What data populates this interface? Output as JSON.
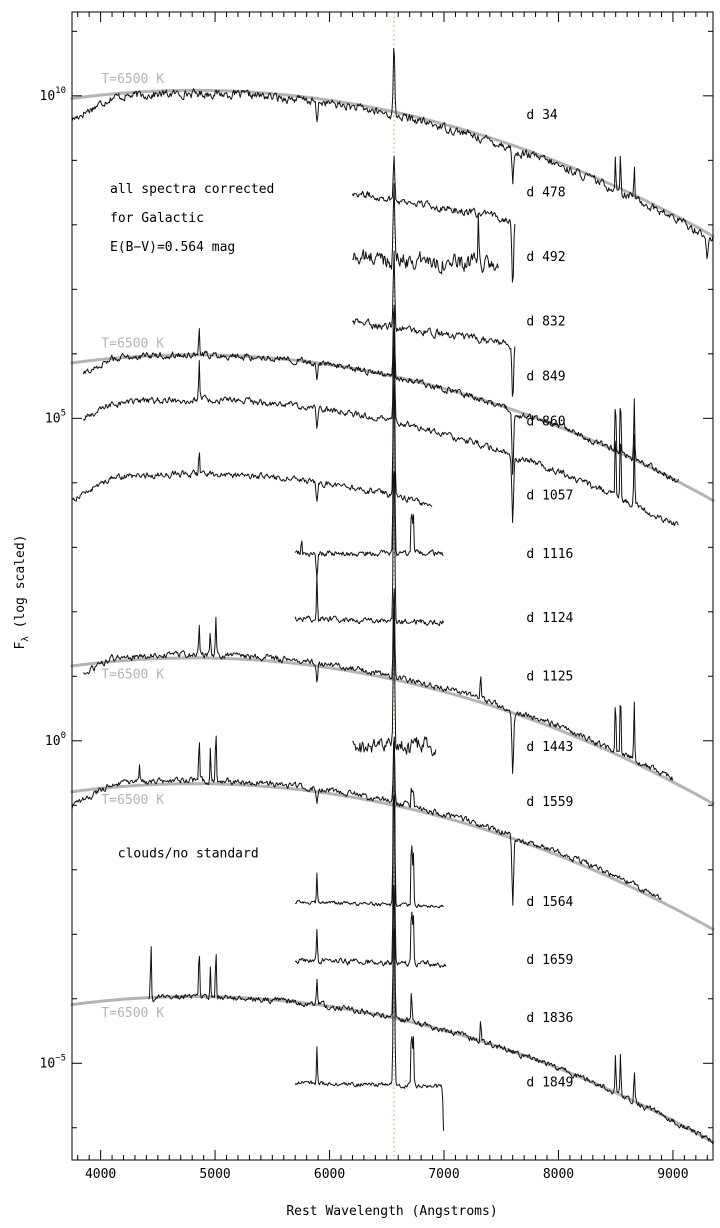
{
  "chart_data": {
    "type": "line",
    "title": "",
    "xlabel": "Rest Wavelength (Angstroms)",
    "ylabel_prefix": "F",
    "ylabel_sub": "λ",
    "ylabel_suffix": " (log scaled)",
    "xlim": [
      3750,
      9350
    ],
    "x_ticks": [
      4000,
      5000,
      6000,
      7000,
      8000,
      9000
    ],
    "x_tick_labels": [
      "4000",
      "5000",
      "6000",
      "7000",
      "8000",
      "9000"
    ],
    "ylog_lim": [
      -6.5,
      11.3
    ],
    "y_ticks": [
      {
        "log": 10,
        "base": "10",
        "exp": "10"
      },
      {
        "log": 5,
        "base": "10",
        "exp": "5"
      },
      {
        "log": 0,
        "base": "10",
        "exp": "0"
      },
      {
        "log": -5,
        "base": "10",
        "exp": "−5"
      }
    ],
    "halpha_marker": 6563,
    "note_lines": [
      "all spectra corrected",
      "for Galactic",
      "E(B−V)=0.564 mag"
    ],
    "spectra": [
      {
        "label": "d 34",
        "range": [
          3750,
          9350
        ],
        "level": 9.7,
        "shape": "full",
        "noise": 0.22,
        "em": [
          [
            6563,
            1.1
          ],
          [
            8498,
            0.55
          ],
          [
            8542,
            0.6
          ],
          [
            8662,
            0.55
          ]
        ],
        "ab": [
          [
            5890,
            0.35
          ],
          [
            7600,
            0.4
          ],
          [
            9300,
            0.4
          ]
        ],
        "bb": {
          "label": "T=6500 K",
          "off": 0.05,
          "label_pos": "above"
        }
      },
      {
        "label": "d 478",
        "range": [
          6200,
          7620
        ],
        "level": 8.5,
        "shape": "flat",
        "noise": 0.2,
        "slope": -0.6,
        "em": [
          [
            6563,
            0.7
          ]
        ],
        "ab": [
          [
            7600,
            1.0
          ]
        ]
      },
      {
        "label": "d 492",
        "range": [
          6200,
          7480
        ],
        "level": 7.5,
        "shape": "flat",
        "noise": 0.45,
        "slope": -0.2,
        "em": [
          [
            6563,
            1.2
          ],
          [
            7300,
            0.8
          ]
        ],
        "ab": []
      },
      {
        "label": "d 832",
        "range": [
          6200,
          7620
        ],
        "level": 6.5,
        "shape": "flat",
        "noise": 0.2,
        "slope": -0.5,
        "em": [
          [
            6563,
            1.2
          ]
        ],
        "ab": [
          [
            7600,
            0.9
          ]
        ]
      },
      {
        "label": "d 849",
        "range": [
          3850,
          9050
        ],
        "level": 5.65,
        "shape": "full",
        "noise": 0.18,
        "em": [
          [
            4861,
            0.45
          ],
          [
            6563,
            1.2
          ],
          [
            8498,
            0.9
          ],
          [
            8542,
            1.0
          ],
          [
            8662,
            0.9
          ]
        ],
        "ab": [
          [
            5890,
            0.3
          ],
          [
            7600,
            1.0
          ]
        ],
        "bb": {
          "label": "T=6500 K",
          "off": 0.0,
          "label_pos": "above"
        }
      },
      {
        "label": "d 860",
        "range": [
          3850,
          9050
        ],
        "level": 4.95,
        "shape": "full",
        "noise": 0.18,
        "em": [
          [
            4861,
            0.6
          ],
          [
            6563,
            1.6
          ],
          [
            8498,
            1.1
          ],
          [
            8542,
            1.2
          ],
          [
            8662,
            1.1
          ]
        ],
        "ab": [
          [
            5890,
            0.3
          ],
          [
            7600,
            1.0
          ]
        ]
      },
      {
        "label": "d 1057",
        "range": [
          3750,
          6900
        ],
        "level": 3.8,
        "shape": "full",
        "noise": 0.16,
        "em": [
          [
            4861,
            0.4
          ],
          [
            6563,
            2.5
          ]
        ],
        "ab": [
          [
            5890,
            0.3
          ]
        ]
      },
      {
        "label": "d 1116",
        "range": [
          5700,
          7000
        ],
        "level": 2.9,
        "shape": "flat",
        "noise": 0.16,
        "slope": 0.0,
        "em": [
          [
            5755,
            0.25
          ],
          [
            6563,
            3.0
          ],
          [
            6716,
            0.8
          ],
          [
            6731,
            0.7
          ]
        ],
        "ab": [
          [
            5890,
            0.4
          ]
        ]
      },
      {
        "label": "d 1124",
        "range": [
          5700,
          7000
        ],
        "level": 1.9,
        "shape": "flat",
        "noise": 0.16,
        "slope": -0.1,
        "em": [
          [
            5890,
            0.7
          ],
          [
            6563,
            2.6
          ]
        ],
        "ab": []
      },
      {
        "label": "d 1125",
        "range": [
          3850,
          9000
        ],
        "level": 1.0,
        "shape": "full",
        "noise": 0.16,
        "em": [
          [
            4861,
            0.5
          ],
          [
            4959,
            0.4
          ],
          [
            5007,
            0.6
          ],
          [
            6563,
            1.5
          ],
          [
            7320,
            0.4
          ],
          [
            8498,
            0.9
          ],
          [
            8542,
            1.0
          ],
          [
            8662,
            0.9
          ]
        ],
        "ab": [
          [
            5890,
            0.3
          ],
          [
            7600,
            1.0
          ]
        ],
        "bb": {
          "label": "T=6500 K",
          "off": -0.05,
          "label_pos": "below"
        }
      },
      {
        "label": "d 1443",
        "range": [
          6200,
          6930
        ],
        "level": -0.1,
        "shape": "flat",
        "noise": 0.45,
        "slope": 0.0,
        "em": [
          [
            6563,
            2.2
          ]
        ],
        "ab": []
      },
      {
        "label": "d 1559",
        "range": [
          3750,
          8900
        ],
        "level": -0.95,
        "shape": "full",
        "noise": 0.16,
        "em": [
          [
            4340,
            0.3
          ],
          [
            4861,
            0.7
          ],
          [
            4959,
            0.5
          ],
          [
            5007,
            0.8
          ],
          [
            6563,
            1.0
          ],
          [
            6716,
            0.4
          ],
          [
            6731,
            0.35
          ]
        ],
        "ab": [
          [
            5890,
            0.25
          ],
          [
            7600,
            1.0
          ]
        ],
        "bb": {
          "label": "T=6500 K",
          "off": -0.05,
          "label_pos": "below"
        }
      },
      {
        "label": "d 1564",
        "range": [
          5700,
          7000
        ],
        "level": -2.5,
        "shape": "flat",
        "noise": 0.1,
        "slope": -0.1,
        "em": [
          [
            5890,
            0.5
          ],
          [
            6563,
            3.0
          ],
          [
            6716,
            1.2
          ],
          [
            6731,
            1.0
          ]
        ],
        "ab": []
      },
      {
        "label": "d 1659",
        "range": [
          5700,
          7020
        ],
        "level": -3.4,
        "shape": "flat",
        "noise": 0.15,
        "slope": -0.1,
        "em": [
          [
            5890,
            0.5
          ],
          [
            6563,
            3.0
          ],
          [
            6716,
            1.0
          ],
          [
            6731,
            0.9
          ]
        ],
        "ab": []
      },
      {
        "label": "d 1836",
        "range": [
          4420,
          9350
        ],
        "level": -4.3,
        "shape": "full",
        "noise": 0.16,
        "em": [
          [
            4440,
            0.9
          ],
          [
            4861,
            0.8
          ],
          [
            4959,
            0.5
          ],
          [
            5007,
            0.8
          ],
          [
            5890,
            0.4
          ],
          [
            6563,
            2.2
          ],
          [
            6716,
            0.5
          ],
          [
            7320,
            0.4
          ],
          [
            8498,
            0.6
          ],
          [
            8542,
            0.6
          ],
          [
            8662,
            0.5
          ]
        ],
        "ab": [],
        "bb": {
          "label": "T=6500 K",
          "off": 0.0,
          "label_pos": "below"
        }
      },
      {
        "label": "d 1849",
        "range": [
          5700,
          7000
        ],
        "level": -5.3,
        "shape": "flat",
        "noise": 0.12,
        "slope": -0.1,
        "em": [
          [
            5890,
            0.6
          ],
          [
            6563,
            2.8
          ],
          [
            6716,
            1.0
          ],
          [
            6731,
            0.9
          ]
        ],
        "ab": [
          [
            7000,
            0.8
          ]
        ]
      }
    ],
    "annotations": [
      {
        "text": "clouds/no standard",
        "x": 4150,
        "ylog": -1.75
      }
    ],
    "colors": {
      "spectrum": "#111111",
      "blackbody": "#b4b4b4",
      "halpha_line": "#d9a870",
      "axes": "#000000"
    }
  }
}
